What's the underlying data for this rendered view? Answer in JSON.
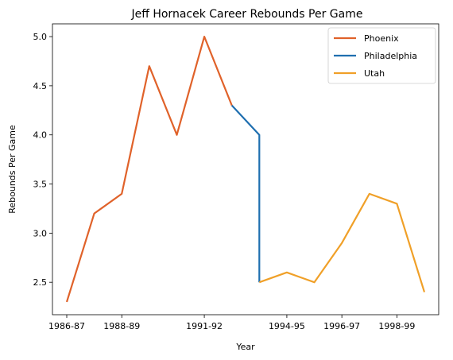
{
  "chart_data": {
    "type": "line",
    "title": "Jeff Hornacek Career Rebounds Per Game",
    "xlabel": "Year",
    "ylabel": "Rebounds Per Game",
    "x_tick_labels": [
      "1986-87",
      "1988-89",
      "1991-92",
      "1994-95",
      "1996-97",
      "1998-99"
    ],
    "y_tick_labels": [
      "2.5",
      "3.0",
      "3.5",
      "4.0",
      "4.5",
      "5.0"
    ],
    "y_ticks": [
      2.5,
      3.0,
      3.5,
      4.0,
      4.5,
      5.0
    ],
    "ylim": [
      2.17,
      5.13
    ],
    "grid": false,
    "legend_position": "top-right",
    "series": [
      {
        "name": "Phoenix",
        "color": "#e0622a",
        "points": [
          [
            "1986-87",
            2.3
          ],
          [
            "1987-88",
            3.2
          ],
          [
            "1988-89",
            3.4
          ],
          [
            "1989-90",
            4.7
          ],
          [
            "1990-91",
            4.0
          ],
          [
            "1991-92",
            5.0
          ],
          [
            "1992-93",
            4.3
          ]
        ]
      },
      {
        "name": "Philadelphia",
        "color": "#1f6fb0",
        "points": [
          [
            "1992-93",
            4.3
          ],
          [
            "1993-94",
            4.0
          ],
          [
            "1993-94",
            2.5
          ]
        ]
      },
      {
        "name": "Utah",
        "color": "#f0a028",
        "points": [
          [
            "1993-94",
            2.5
          ],
          [
            "1994-95",
            2.6
          ],
          [
            "1995-96",
            2.5
          ],
          [
            "1996-97",
            2.9
          ],
          [
            "1997-98",
            3.4
          ],
          [
            "1998-99",
            3.3
          ],
          [
            "1999-00",
            2.4
          ]
        ]
      }
    ]
  }
}
